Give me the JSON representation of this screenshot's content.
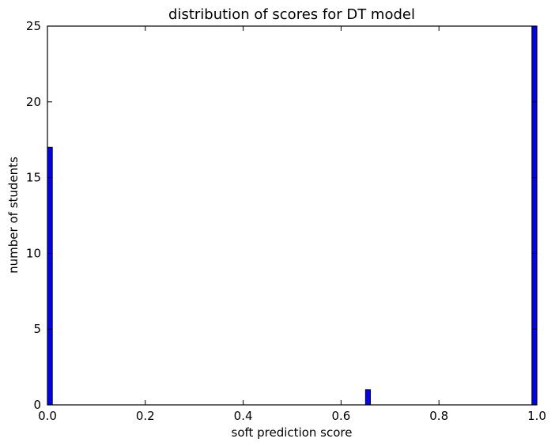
{
  "chart_data": {
    "type": "bar",
    "title": "distribution of scores for DT model",
    "xlabel": "soft prediction score",
    "ylabel": "number of students",
    "xlim": [
      0,
      1
    ],
    "ylim": [
      0,
      25
    ],
    "xticks": [
      "0.0",
      "0.2",
      "0.4",
      "0.6",
      "0.8",
      "1.0"
    ],
    "yticks": [
      "0",
      "5",
      "10",
      "15",
      "20",
      "25"
    ],
    "bin_width": 0.01,
    "bins": [
      {
        "x_start": 0.0,
        "count": 17
      },
      {
        "x_start": 0.65,
        "count": 1
      },
      {
        "x_start": 0.99,
        "count": 25
      }
    ],
    "bar_color": "#0000ff",
    "edge_color": "#000000",
    "grid": false,
    "legend": "none"
  }
}
